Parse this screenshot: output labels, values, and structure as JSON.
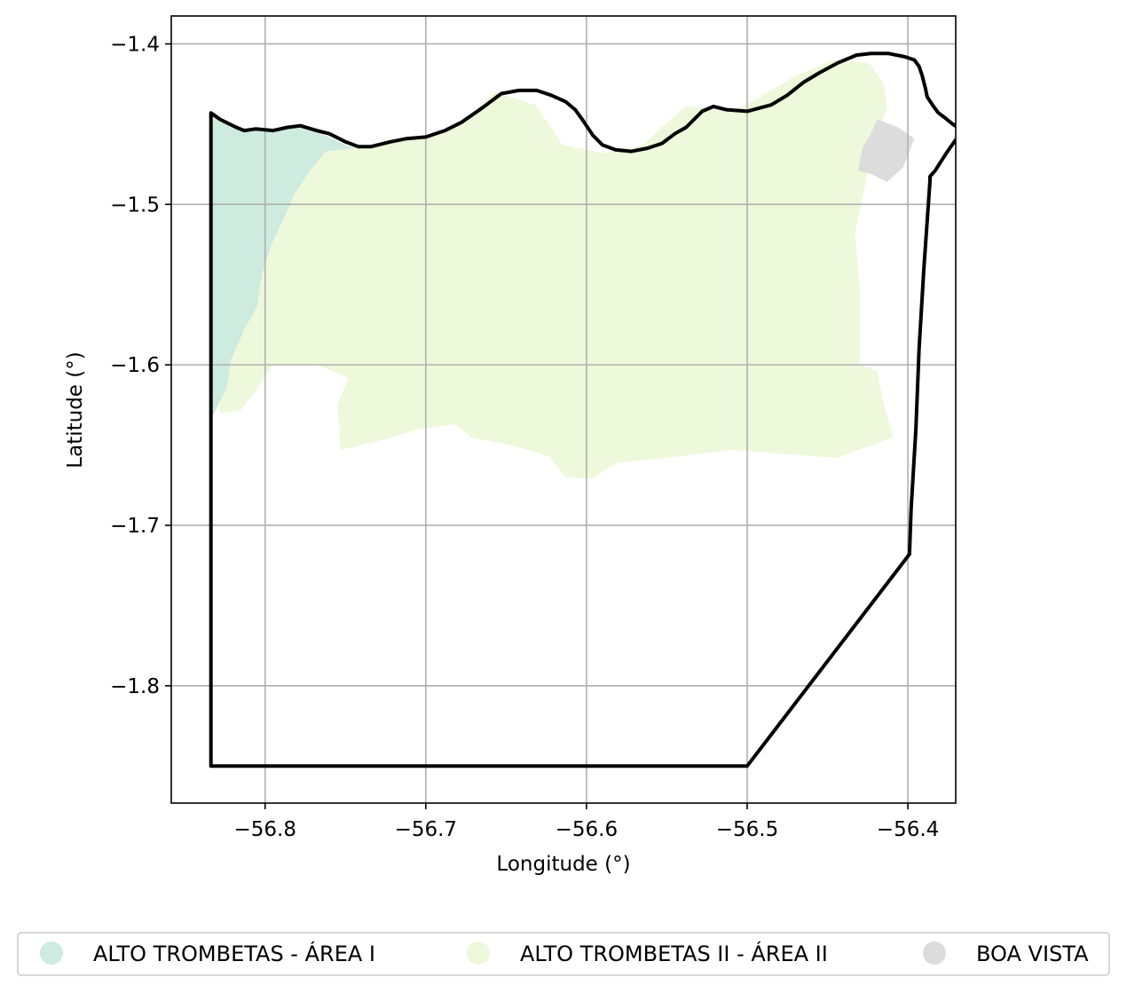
{
  "chart_data": {
    "type": "map",
    "xlabel": "Longitude (°)",
    "ylabel": "Latitude (°)",
    "xlim": [
      -56.8584,
      -56.3702
    ],
    "ylim": [
      -1.8731,
      -1.3826
    ],
    "xticks": [
      {
        "value": -56.8,
        "label": "−56.8"
      },
      {
        "value": -56.7,
        "label": "−56.7"
      },
      {
        "value": -56.6,
        "label": "−56.6"
      },
      {
        "value": -56.5,
        "label": "−56.5"
      },
      {
        "value": -56.4,
        "label": "−56.4"
      }
    ],
    "yticks": [
      {
        "value": -1.4,
        "label": "−1.4"
      },
      {
        "value": -1.5,
        "label": "−1.5"
      },
      {
        "value": -1.6,
        "label": "−1.6"
      },
      {
        "value": -1.7,
        "label": "−1.7"
      },
      {
        "value": -1.8,
        "label": "−1.8"
      }
    ],
    "grid": true,
    "legend_position": "bottom",
    "series": [
      {
        "name": "ALTO TROMBETAS - ÁREA I",
        "color": "#cdebde",
        "polygon": [
          [
            -56.8337,
            -1.4433
          ],
          [
            -56.826,
            -1.4488
          ],
          [
            -56.816,
            -1.4527
          ],
          [
            -56.799,
            -1.4538
          ],
          [
            -56.778,
            -1.4512
          ],
          [
            -56.765,
            -1.456
          ],
          [
            -56.75,
            -1.463
          ],
          [
            -56.743,
            -1.465
          ],
          [
            -56.762,
            -1.467
          ],
          [
            -56.772,
            -1.479
          ],
          [
            -56.782,
            -1.494
          ],
          [
            -56.788,
            -1.508
          ],
          [
            -56.796,
            -1.525
          ],
          [
            -56.802,
            -1.544
          ],
          [
            -56.805,
            -1.564
          ],
          [
            -56.813,
            -1.578
          ],
          [
            -56.821,
            -1.597
          ],
          [
            -56.824,
            -1.614
          ],
          [
            -56.828,
            -1.623
          ],
          [
            -56.8337,
            -1.634
          ]
        ]
      },
      {
        "name": "ALTO TROMBETAS II - ÁREA II",
        "color": "#eef8da",
        "polygon": [
          [
            -56.743,
            -1.465
          ],
          [
            -56.73,
            -1.4625
          ],
          [
            -56.717,
            -1.459
          ],
          [
            -56.695,
            -1.457
          ],
          [
            -56.671,
            -1.443
          ],
          [
            -56.657,
            -1.43
          ],
          [
            -56.632,
            -1.438
          ],
          [
            -56.622,
            -1.452
          ],
          [
            -56.615,
            -1.463
          ],
          [
            -56.59,
            -1.468
          ],
          [
            -56.565,
            -1.463
          ],
          [
            -56.552,
            -1.451
          ],
          [
            -56.538,
            -1.439
          ],
          [
            -56.51,
            -1.442
          ],
          [
            -56.495,
            -1.435
          ],
          [
            -56.47,
            -1.42
          ],
          [
            -56.446,
            -1.41
          ],
          [
            -56.424,
            -1.412
          ],
          [
            -56.415,
            -1.425
          ],
          [
            -56.413,
            -1.44
          ],
          [
            -56.421,
            -1.46
          ],
          [
            -56.427,
            -1.49
          ],
          [
            -56.433,
            -1.518
          ],
          [
            -56.43,
            -1.55
          ],
          [
            -56.43,
            -1.585
          ],
          [
            -56.43,
            -1.6
          ],
          [
            -56.419,
            -1.604
          ],
          [
            -56.415,
            -1.625
          ],
          [
            -56.409,
            -1.645
          ],
          [
            -56.444,
            -1.658
          ],
          [
            -56.47,
            -1.656
          ],
          [
            -56.51,
            -1.653
          ],
          [
            -56.55,
            -1.658
          ],
          [
            -56.582,
            -1.661
          ],
          [
            -56.596,
            -1.671
          ],
          [
            -56.613,
            -1.67
          ],
          [
            -56.623,
            -1.657
          ],
          [
            -56.647,
            -1.65
          ],
          [
            -56.672,
            -1.645
          ],
          [
            -56.682,
            -1.637
          ],
          [
            -56.705,
            -1.64
          ],
          [
            -56.728,
            -1.647
          ],
          [
            -56.753,
            -1.653
          ],
          [
            -56.755,
            -1.625
          ],
          [
            -56.748,
            -1.608
          ],
          [
            -56.768,
            -1.6
          ],
          [
            -56.795,
            -1.6
          ],
          [
            -56.806,
            -1.616
          ],
          [
            -56.815,
            -1.628
          ],
          [
            -56.828,
            -1.63
          ],
          [
            -56.828,
            -1.623
          ],
          [
            -56.824,
            -1.614
          ],
          [
            -56.821,
            -1.597
          ],
          [
            -56.813,
            -1.578
          ],
          [
            -56.805,
            -1.564
          ],
          [
            -56.802,
            -1.544
          ],
          [
            -56.796,
            -1.525
          ],
          [
            -56.788,
            -1.508
          ],
          [
            -56.782,
            -1.494
          ],
          [
            -56.772,
            -1.479
          ],
          [
            -56.762,
            -1.467
          ]
        ]
      },
      {
        "name": "BOA VISTA",
        "color": "#dcdcdc",
        "polygon": [
          [
            -56.419,
            -1.447
          ],
          [
            -56.406,
            -1.452
          ],
          [
            -56.396,
            -1.459
          ],
          [
            -56.403,
            -1.477
          ],
          [
            -56.413,
            -1.486
          ],
          [
            -56.423,
            -1.481
          ],
          [
            -56.431,
            -1.479
          ],
          [
            -56.428,
            -1.464
          ],
          [
            -56.423,
            -1.456
          ]
        ]
      }
    ],
    "boundary": {
      "color": "#000000",
      "polygon": [
        [
          -56.8337,
          -1.443
        ],
        [
          -56.828,
          -1.447
        ],
        [
          -56.818,
          -1.452
        ],
        [
          -56.813,
          -1.454
        ],
        [
          -56.806,
          -1.453
        ],
        [
          -56.795,
          -1.454
        ],
        [
          -56.786,
          -1.452
        ],
        [
          -56.778,
          -1.451
        ],
        [
          -56.768,
          -1.454
        ],
        [
          -56.76,
          -1.456
        ],
        [
          -56.75,
          -1.461
        ],
        [
          -56.742,
          -1.464
        ],
        [
          -56.734,
          -1.464
        ],
        [
          -56.722,
          -1.461
        ],
        [
          -56.712,
          -1.459
        ],
        [
          -56.7,
          -1.458
        ],
        [
          -56.688,
          -1.454
        ],
        [
          -56.678,
          -1.449
        ],
        [
          -56.665,
          -1.44
        ],
        [
          -56.653,
          -1.431
        ],
        [
          -56.642,
          -1.429
        ],
        [
          -56.631,
          -1.429
        ],
        [
          -56.622,
          -1.432
        ],
        [
          -56.613,
          -1.436
        ],
        [
          -56.607,
          -1.441
        ],
        [
          -56.602,
          -1.448
        ],
        [
          -56.596,
          -1.457
        ],
        [
          -56.59,
          -1.463
        ],
        [
          -56.582,
          -1.466
        ],
        [
          -56.572,
          -1.467
        ],
        [
          -56.562,
          -1.465
        ],
        [
          -56.553,
          -1.462
        ],
        [
          -56.545,
          -1.456
        ],
        [
          -56.538,
          -1.452
        ],
        [
          -56.533,
          -1.447
        ],
        [
          -56.528,
          -1.442
        ],
        [
          -56.521,
          -1.439
        ],
        [
          -56.513,
          -1.441
        ],
        [
          -56.5,
          -1.442
        ],
        [
          -56.485,
          -1.438
        ],
        [
          -56.475,
          -1.432
        ],
        [
          -56.465,
          -1.424
        ],
        [
          -56.455,
          -1.418
        ],
        [
          -56.444,
          -1.412
        ],
        [
          -56.432,
          -1.407
        ],
        [
          -56.423,
          -1.406
        ],
        [
          -56.412,
          -1.406
        ],
        [
          -56.402,
          -1.408
        ],
        [
          -56.396,
          -1.41
        ],
        [
          -56.393,
          -1.414
        ],
        [
          -56.391,
          -1.42
        ],
        [
          -56.389,
          -1.428
        ],
        [
          -56.388,
          -1.433
        ],
        [
          -56.384,
          -1.439
        ],
        [
          -56.381,
          -1.443
        ],
        [
          -56.377,
          -1.446
        ],
        [
          -56.3745,
          -1.448
        ],
        [
          -56.372,
          -1.45
        ],
        [
          -56.369,
          -1.452
        ],
        [
          -56.3665,
          -1.454
        ],
        [
          -56.369,
          -1.458
        ],
        [
          -56.376,
          -1.468
        ],
        [
          -56.383,
          -1.479
        ],
        [
          -56.3862,
          -1.4826
        ],
        [
          -56.3862,
          -1.4853
        ],
        [
          -56.39,
          -1.54
        ],
        [
          -56.393,
          -1.59
        ],
        [
          -56.395,
          -1.64
        ],
        [
          -56.398,
          -1.69
        ],
        [
          -56.399,
          -1.718
        ],
        [
          -56.5,
          -1.85
        ],
        [
          -56.8337,
          -1.85
        ]
      ]
    }
  },
  "legend": {
    "items": [
      {
        "label": "ALTO TROMBETAS - ÁREA I",
        "color": "#cdebde"
      },
      {
        "label": "ALTO TROMBETAS II - ÁREA II",
        "color": "#eef8da"
      },
      {
        "label": "BOA VISTA",
        "color": "#dcdcdc"
      }
    ]
  }
}
